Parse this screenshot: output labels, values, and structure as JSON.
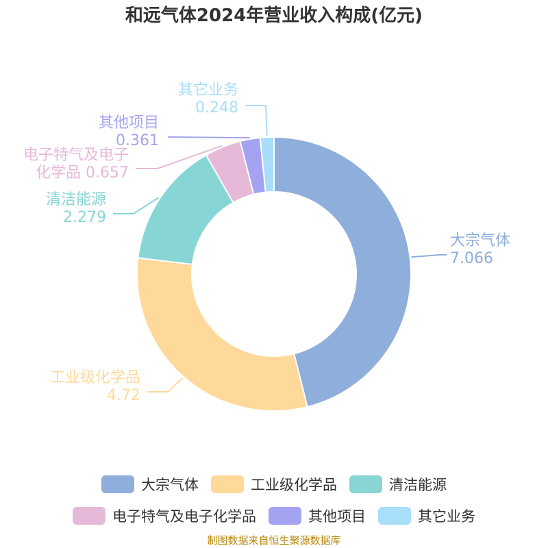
{
  "title": "和远气体2024年营业收入构成(亿元)",
  "source": "制图数据来自恒生聚源数据库",
  "chart_data": {
    "type": "pie",
    "donut": true,
    "legend_position": "bottom",
    "series": [
      {
        "name": "大宗气体",
        "label": [
          "大宗气体"
        ],
        "value": 7.066,
        "value_label": "7.066",
        "color": "#8eaedb"
      },
      {
        "name": "工业级化学品",
        "label": [
          "工业级化学品"
        ],
        "value": 4.72,
        "value_label": "4.72",
        "color": "#ffd99a"
      },
      {
        "name": "清洁能源",
        "label": [
          "清洁能源"
        ],
        "value": 2.279,
        "value_label": "2.279",
        "color": "#88d5d5"
      },
      {
        "name": "电子特气及电子化学品",
        "label": [
          "电子特气及电子",
          "化学品"
        ],
        "value": 0.657,
        "value_label": "0.657",
        "color": "#e6b9d8"
      },
      {
        "name": "其他项目",
        "label": [
          "其他项目"
        ],
        "value": 0.361,
        "value_label": "0.361",
        "color": "#a3a3f2"
      },
      {
        "name": "其它业务",
        "label": [
          "其它业务"
        ],
        "value": 0.248,
        "value_label": "0.248",
        "color": "#a8def9"
      }
    ]
  }
}
